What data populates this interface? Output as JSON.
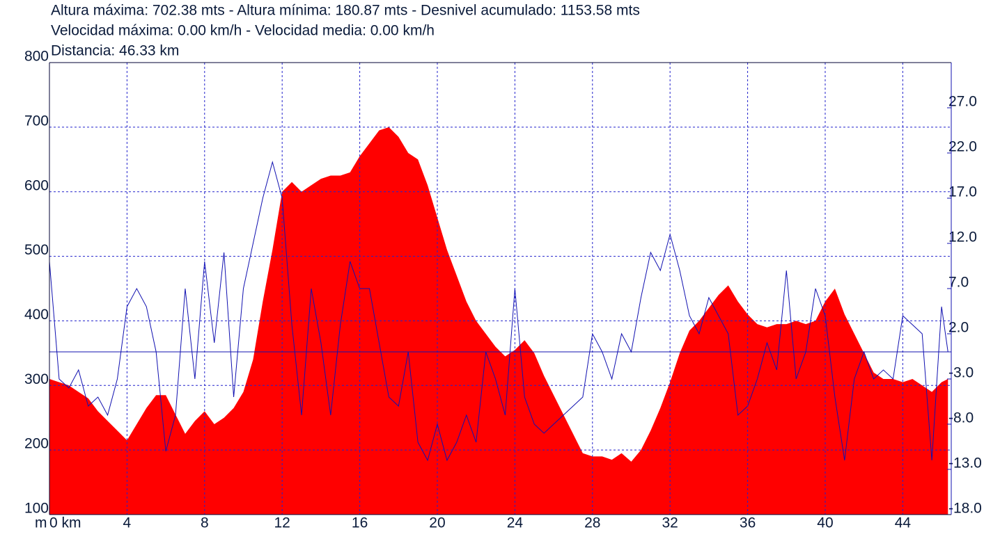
{
  "chart_data": {
    "type": "area",
    "title_lines": [
      "Altura máxima: 702.38 mts - Altura mínima: 180.87 mts - Desnivel acumulado: 1153.58 mts",
      "Velocidad máxima: 0.00 km/h - Velocidad media: 0.00 km/h",
      "Distancia: 46.33 km"
    ],
    "ylabel": "m",
    "x": [
      0,
      0.5,
      1,
      1.5,
      2,
      2.5,
      3,
      3.5,
      4,
      4.5,
      5,
      5.5,
      6,
      6.5,
      7,
      7.5,
      8,
      8.5,
      9,
      9.5,
      10,
      10.5,
      11,
      11.5,
      12,
      12.5,
      13,
      13.5,
      14,
      14.5,
      15,
      15.5,
      16,
      16.5,
      17,
      17.5,
      18,
      18.5,
      19,
      19.5,
      20,
      20.5,
      21,
      21.5,
      22,
      22.5,
      23,
      23.5,
      24,
      24.5,
      25,
      25.5,
      26,
      26.5,
      27,
      27.5,
      28,
      28.5,
      29,
      29.5,
      30,
      30.5,
      31,
      31.5,
      32,
      32.5,
      33,
      33.5,
      34,
      34.5,
      35,
      35.5,
      36,
      36.5,
      37,
      37.5,
      38,
      38.5,
      39,
      39.5,
      40,
      40.5,
      41,
      41.5,
      42,
      42.5,
      43,
      43.5,
      44,
      44.5,
      45,
      45.5,
      46,
      46.33
    ],
    "series": [
      {
        "style": "area",
        "color": "#ff0000",
        "values": [
          310,
          305,
          300,
          290,
          280,
          260,
          245,
          230,
          215,
          240,
          265,
          285,
          285,
          255,
          225,
          245,
          260,
          240,
          250,
          265,
          290,
          340,
          430,
          510,
          600,
          615,
          600,
          610,
          620,
          625,
          625,
          630,
          655,
          675,
          695,
          700,
          685,
          660,
          650,
          610,
          560,
          510,
          470,
          430,
          400,
          380,
          360,
          345,
          355,
          370,
          350,
          315,
          285,
          255,
          225,
          195,
          190,
          190,
          185,
          195,
          182,
          200,
          230,
          265,
          305,
          350,
          385,
          400,
          420,
          440,
          455,
          430,
          410,
          395,
          390,
          395,
          395,
          400,
          395,
          400,
          430,
          450,
          410,
          380,
          350,
          320,
          310,
          310,
          305,
          310,
          300,
          290,
          305,
          310
        ]
      },
      {
        "style": "line",
        "color": "#1010b0",
        "axis": "y2",
        "values": [
          10,
          -3,
          -4,
          -2,
          -6,
          -5,
          -7,
          -3,
          5,
          7,
          5,
          0,
          -11,
          -7,
          7,
          -3,
          10,
          1,
          11,
          -5,
          7,
          12,
          17,
          21,
          17,
          3,
          -7,
          7,
          1,
          -7,
          3,
          10,
          7,
          7,
          1,
          -5,
          -6,
          0,
          -10,
          -12,
          -8,
          -12,
          -10,
          -7,
          -10,
          0,
          -3,
          -7,
          7,
          -5,
          -8,
          -9,
          -8,
          -7,
          -6,
          -5,
          2,
          0,
          -3,
          2,
          0,
          6,
          11,
          9,
          13,
          9,
          4,
          2,
          6,
          4,
          2,
          -7,
          -6,
          -3,
          1,
          -2,
          9,
          -3,
          0,
          7,
          4,
          -5,
          -12,
          -3,
          0,
          -3,
          -2,
          -3,
          4,
          3,
          2,
          -12,
          5,
          0
        ]
      }
    ],
    "xlim": [
      0,
      46.5
    ],
    "xticks": [
      {
        "value": 0,
        "label": "0 km"
      },
      4,
      8,
      12,
      16,
      20,
      24,
      28,
      32,
      36,
      40,
      44
    ],
    "ylim": [
      100,
      800
    ],
    "yticks": [
      100,
      200,
      300,
      400,
      500,
      600,
      700,
      800
    ],
    "y2lim": [
      -18,
      32
    ],
    "y2ticks": [
      {
        "value": 27,
        "label": "27.0"
      },
      {
        "value": 22,
        "label": "22.0"
      },
      {
        "value": 17,
        "label": "17.0"
      },
      {
        "value": 12,
        "label": "12.0"
      },
      {
        "value": 7,
        "label": "7.0"
      },
      {
        "value": 2,
        "label": "2.0"
      },
      {
        "value": -3,
        "label": "-3.0"
      },
      {
        "value": -8,
        "label": "-8.0"
      },
      {
        "value": -13,
        "label": "-13.0"
      },
      {
        "value": -18,
        "label": "-18.0"
      }
    ],
    "grid": true,
    "zero_line": true
  }
}
